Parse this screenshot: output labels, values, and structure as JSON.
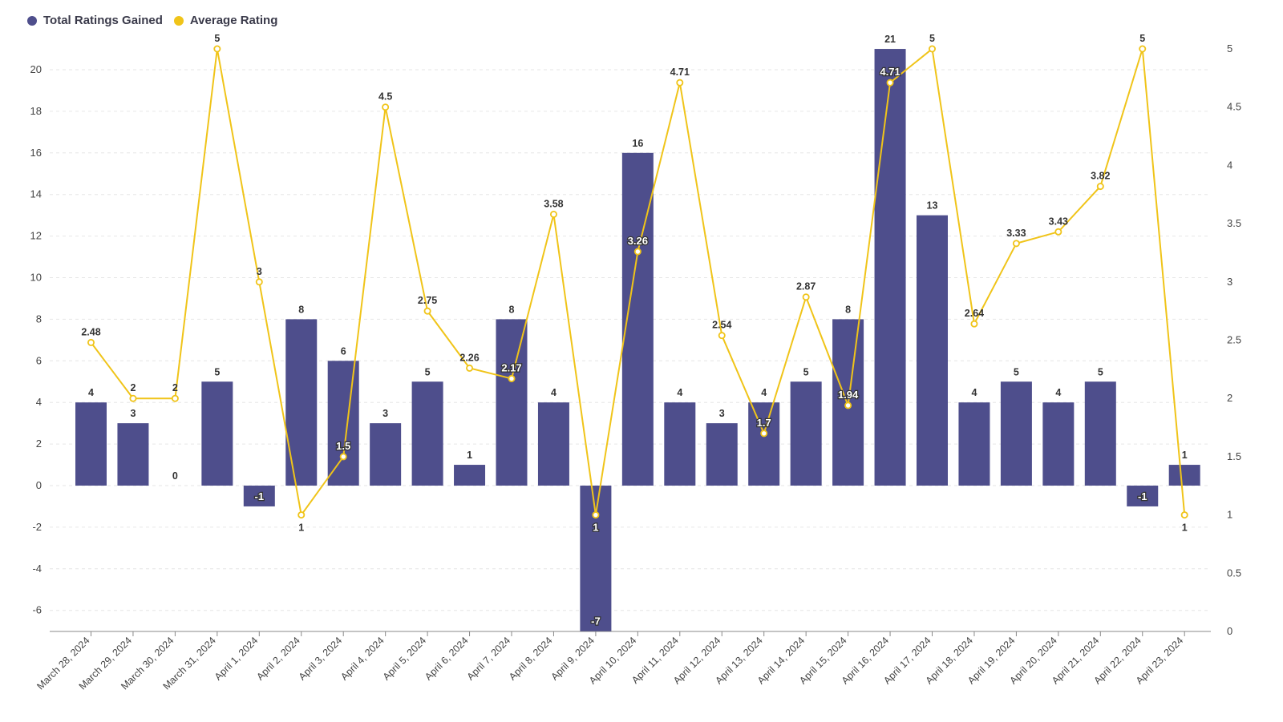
{
  "legend": [
    {
      "label": "Total Ratings Gained",
      "color": "#4e4e8c"
    },
    {
      "label": "Average Rating",
      "color": "#f0c419"
    }
  ],
  "chart_data": {
    "type": "bar",
    "categories": [
      "March 28, 2024",
      "March 29, 2024",
      "March 30, 2024",
      "March 31, 2024",
      "April 1, 2024",
      "April 2, 2024",
      "April 3, 2024",
      "April 4, 2024",
      "April 5, 2024",
      "April 6, 2024",
      "April 7, 2024",
      "April 8, 2024",
      "April 9, 2024",
      "April 10, 2024",
      "April 11, 2024",
      "April 12, 2024",
      "April 13, 2024",
      "April 14, 2024",
      "April 15, 2024",
      "April 16, 2024",
      "April 17, 2024",
      "April 18, 2024",
      "April 19, 2024",
      "April 20, 2024",
      "April 21, 2024",
      "April 22, 2024",
      "April 23, 2024"
    ],
    "series": [
      {
        "name": "Total Ratings Gained",
        "type": "bar",
        "axis": "left",
        "color": "#4e4e8c",
        "values": [
          4,
          3,
          0,
          5,
          -1,
          8,
          6,
          3,
          5,
          1,
          8,
          4,
          -7,
          16,
          4,
          3,
          4,
          5,
          8,
          21,
          13,
          4,
          5,
          4,
          5,
          -1,
          1
        ]
      },
      {
        "name": "Average Rating",
        "type": "line",
        "axis": "right",
        "color": "#f0c419",
        "values": [
          2.48,
          2,
          2,
          5,
          3,
          1,
          1.5,
          4.5,
          2.75,
          2.26,
          2.17,
          3.58,
          1,
          3.26,
          4.71,
          2.54,
          1.7,
          2.87,
          1.94,
          4.71,
          5,
          2.64,
          3.33,
          3.43,
          3.82,
          5,
          1
        ]
      }
    ],
    "y_left": {
      "min": -7,
      "max": 21,
      "ticks": [
        20,
        18,
        16,
        14,
        12,
        10,
        8,
        6,
        4,
        2,
        0,
        -2,
        -4,
        -6
      ]
    },
    "y_right": {
      "min": 0,
      "max": 5,
      "ticks": [
        5,
        4.5,
        4,
        3.5,
        3,
        2.5,
        2,
        1.5,
        1,
        0.5,
        0
      ]
    },
    "grid": true,
    "legend_position": "top-left"
  }
}
